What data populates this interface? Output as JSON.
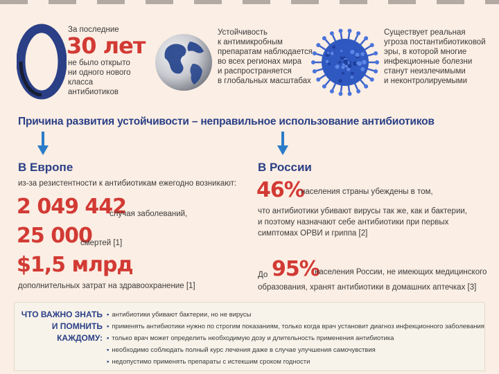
{
  "top": {
    "block1": {
      "line1": "За последние",
      "big": "30 лет",
      "rest": [
        "не было открыто",
        "ни одного нового",
        "класса",
        "антибиотиков"
      ]
    },
    "block2": {
      "lines": [
        "Устойчивость",
        "к антимикробным",
        "препаратам наблюдается",
        "во всех регионах мира",
        "и распространяется",
        "в глобальных масштабах"
      ]
    },
    "block3": {
      "lines": [
        "Существует реальная",
        "угроза постантибиотиковой",
        "эры, в которой многие",
        "инфекционные болезни",
        "станут неизлечимыми",
        "и неконтролируемыми"
      ]
    }
  },
  "headline": "Причина развития устойчивости – неправильное использование антибиотиков",
  "europe": {
    "title": "В Европе",
    "intro": "из-за резистентности к антибиотикам ежегодно возникают:",
    "stat1_value": "2 049 442",
    "stat1_label": "случая заболеваний,",
    "stat2_value": "25 000",
    "stat2_label": "смертей [1]",
    "stat3_value": "$1,5 млрд",
    "stat3_label": "дополнительных затрат на здравоохранение [1]"
  },
  "russia": {
    "title": "В России",
    "stat1_value": "46%",
    "stat1_line1": "населения страны убеждены в том,",
    "stat1_lines": [
      "что антибиотики убивают вирусы так же, как и бактерии,",
      "и поэтому назначают себе антибиотики при первых",
      "симптомах ОРВИ и гриппа [2]"
    ],
    "stat2_prefix": "До",
    "stat2_value": "95%",
    "stat2_line1": "населения России, не имеющих медицинского",
    "stat2_line2": "образования, хранят антибиотики в домашних аптечках [3]"
  },
  "remember": {
    "title_lines": [
      "ЧТО ВАЖНО ЗНАТЬ",
      "И ПОМНИТЬ",
      "КАЖДОМУ:"
    ],
    "items": [
      "антибиотики убивают бактерии, но не вирусы",
      "применять антибиотики нужно по строгим показаниям, только когда врач установит диагноз инфекционного заболевания",
      "только врач может определить необходимую дозу и длительность применения антибиотика",
      "необходимо соблюдать полный курс лечения даже в случае улучшения самочувствия",
      "недопустимо применять препараты с истекшим сроком годности"
    ]
  },
  "colors": {
    "accent_red": "#d23a34",
    "navy": "#2a3f86",
    "background": "#fbeee4"
  }
}
